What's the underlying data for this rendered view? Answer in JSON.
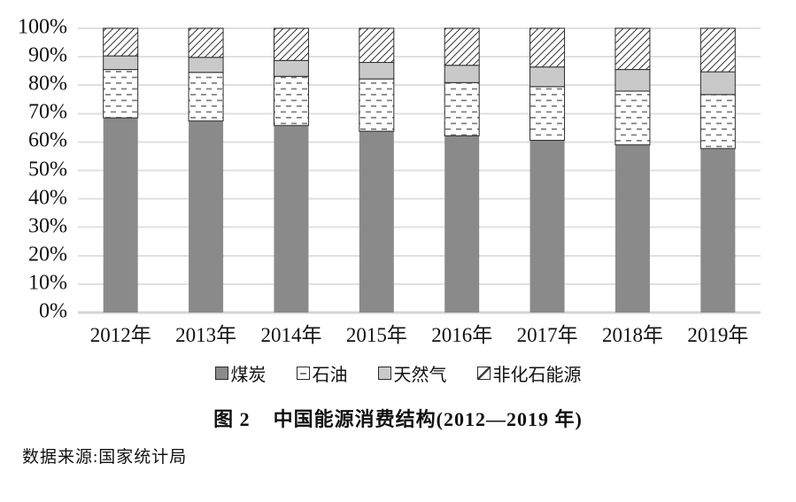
{
  "figure": {
    "title_label": "图 2",
    "title_text": "中国能源消费结构(2012—2019 年)",
    "source": "数据来源:国家统计局"
  },
  "chart_data": {
    "type": "bar",
    "stacked": true,
    "unit": "percent",
    "categories": [
      "2012年",
      "2013年",
      "2014年",
      "2015年",
      "2016年",
      "2017年",
      "2018年",
      "2019年"
    ],
    "series": [
      {
        "name": "煤炭",
        "pattern": "solid-dark",
        "values": [
          68.5,
          67.4,
          65.8,
          63.8,
          62.2,
          60.6,
          59.0,
          57.7
        ]
      },
      {
        "name": "石油",
        "pattern": "dashes",
        "values": [
          17.0,
          17.1,
          17.3,
          18.4,
          18.7,
          18.9,
          18.9,
          19.0
        ]
      },
      {
        "name": "天然气",
        "pattern": "solid-light",
        "values": [
          4.8,
          5.3,
          5.6,
          5.8,
          6.1,
          6.9,
          7.6,
          8.0
        ]
      },
      {
        "name": "非化石能源",
        "pattern": "diagonal-hatch",
        "values": [
          9.7,
          10.2,
          11.3,
          12.0,
          13.0,
          13.6,
          14.5,
          15.3
        ]
      }
    ],
    "y_ticks": [
      "0%",
      "10%",
      "20%",
      "30%",
      "40%",
      "50%",
      "60%",
      "70%",
      "80%",
      "90%",
      "100%"
    ],
    "ylim": [
      0,
      100
    ],
    "grid": "horizontal",
    "legend_position": "bottom"
  },
  "colors": {
    "background": "#ffffff",
    "text": "#111111",
    "coal_fill": "#8a8a8a",
    "gas_fill": "#c9c9c9",
    "dash_line": "#7d7d7d",
    "hatch_line": "#3f3f3f",
    "segment_border": "#2b2b2b",
    "gridline": "#e0e0e0",
    "baseline": "#d4d4d4"
  }
}
